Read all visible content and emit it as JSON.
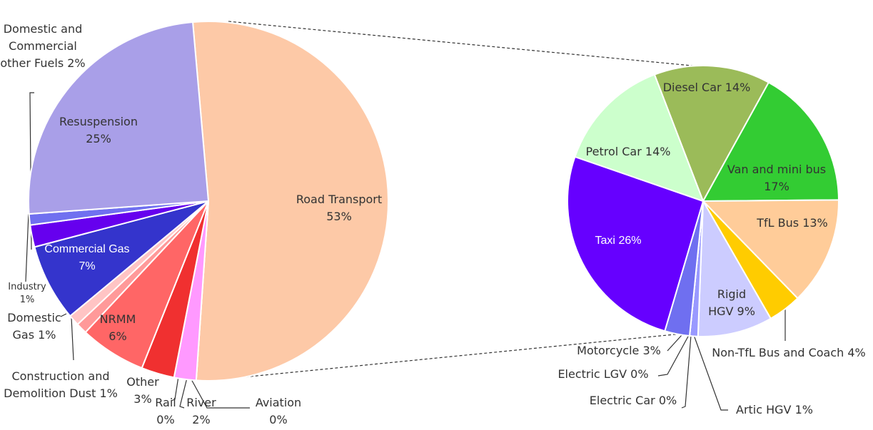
{
  "chart_data": {
    "type": "pie-of-pie",
    "main": {
      "categories": [
        "Road Transport",
        "Aviation",
        "River",
        "Rail",
        "Other",
        "NRMM",
        "Construction and Demolition Dust",
        "Domestic Gas",
        "Commercial Gas",
        "Domestic and Commercial other Fuels",
        "Industry",
        "Resuspension"
      ],
      "values": [
        53,
        0,
        2,
        0,
        3,
        6,
        1,
        1,
        7,
        2,
        1,
        25
      ],
      "value_labels": [
        "53%",
        "0%",
        "2%",
        "0%",
        "3%",
        "6%",
        "1%",
        "1%",
        "7%",
        "2%",
        "1%",
        "25%"
      ],
      "colors": [
        "#fdc9a7",
        "#f3c2d4",
        "#ff99ff",
        "#ff66cc",
        "#f03030",
        "#ff6666",
        "#ff9999",
        "#ffc4c4",
        "#3434cc",
        "#6600ee",
        "#7070f0",
        "#a99fe8"
      ]
    },
    "detail": {
      "categories": [
        "Diesel Car",
        "Van and mini bus",
        "TfL Bus",
        "Non-TfL Bus and Coach",
        "Rigid HGV",
        "Artic HGV",
        "Electric Car",
        "Electric LGV",
        "Motorcycle",
        "Taxi",
        "Petrol Car"
      ],
      "values": [
        14,
        17,
        13,
        4,
        9,
        1,
        0,
        0,
        3,
        26,
        14
      ],
      "value_labels": [
        "14%",
        "17%",
        "13%",
        "4%",
        "9%",
        "1%",
        "0%",
        "0%",
        "3%",
        "26%",
        "14%"
      ],
      "colors": [
        "#9bbb59",
        "#33cc33",
        "#ffcc99",
        "#ffcc00",
        "#ccccff",
        "#9999ff",
        "#b8b8e8",
        "#8080ff",
        "#6f6ff0",
        "#6600ff",
        "#ccffcc"
      ]
    }
  }
}
